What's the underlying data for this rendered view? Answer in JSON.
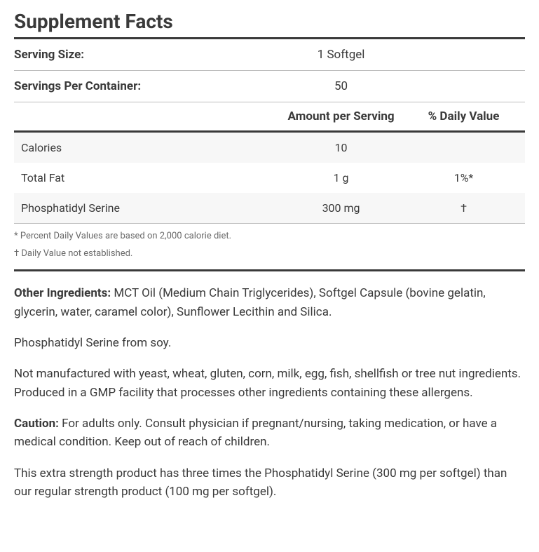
{
  "title": "Supplement Facts",
  "serving": {
    "size_label": "Serving Size:",
    "size_value": "1 Softgel",
    "per_container_label": "Servings Per Container:",
    "per_container_value": "50"
  },
  "columns": {
    "name": "",
    "amount": "Amount per Serving",
    "dv": "% Daily Value"
  },
  "rows": [
    {
      "name": "Calories",
      "amount": "10",
      "dv": ""
    },
    {
      "name": "Total Fat",
      "amount": "1 g",
      "dv": "1%*"
    },
    {
      "name": "Phosphatidyl Serine",
      "amount": "300 mg",
      "dv": "†"
    }
  ],
  "footnotes": [
    "* Percent Daily Values are based on 2,000 calorie diet.",
    "† Daily Value not established."
  ],
  "paragraphs": {
    "other_ingredients_label": "Other Ingredients:",
    "other_ingredients_text": "  MCT Oil (Medium Chain Triglycerides), Softgel Capsule (bovine gelatin, glycerin, water, caramel color), Sunflower Lecithin and Silica.",
    "source": "Phosphatidyl Serine from soy.",
    "allergen": "Not manufactured with yeast, wheat, gluten, corn, milk, egg, fish, shellfish or tree nut ingredients. Produced in a GMP facility that processes other ingredients containing these allergens.",
    "caution_label": "Caution:",
    "caution_text": " For adults only. Consult physician if pregnant/nursing, taking medication, or have a medical condition. Keep out of reach of children.",
    "strength": "This extra strength product has three times the Phosphatidyl Serine (300 mg per softgel) than our regular strength product (100 mg per softgel)."
  }
}
